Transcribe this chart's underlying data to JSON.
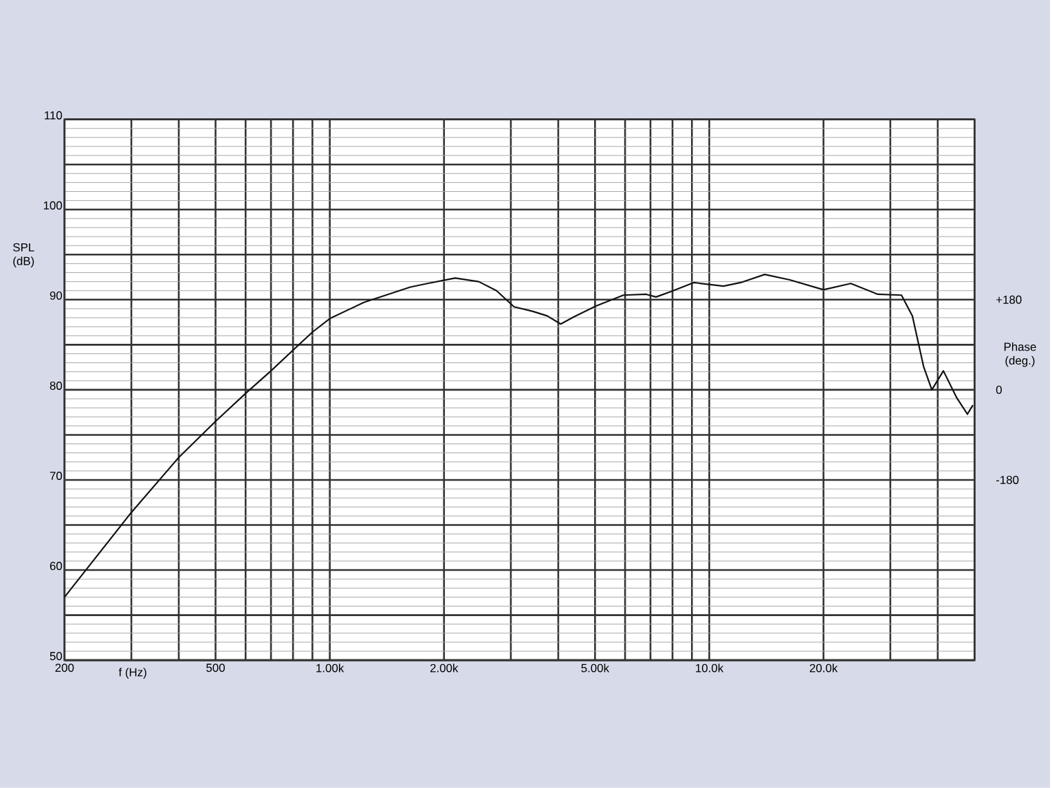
{
  "chart_data": {
    "type": "line",
    "xlabel": "f (Hz)",
    "ylabel": "SPL (dB)",
    "y2label": "Phase (deg.)",
    "log": "x",
    "grid": true,
    "marker": "none",
    "line_style": "solid",
    "xlim": [
      200,
      50000
    ],
    "ylim": [
      50,
      110
    ],
    "y2lim": [
      -540,
      540
    ],
    "xticks": [
      200,
      {
        "value": 300,
        "label": null
      },
      {
        "value": 400,
        "label": null
      },
      500,
      {
        "value": 600,
        "label": null
      },
      {
        "value": 700,
        "label": null
      },
      {
        "value": 800,
        "label": null
      },
      {
        "value": 900,
        "label": null
      },
      {
        "value": 1000,
        "label": "1.00k"
      },
      {
        "value": 2000,
        "label": "2.00k"
      },
      {
        "value": 3000,
        "label": null
      },
      {
        "value": 4000,
        "label": null
      },
      {
        "value": 5000,
        "label": "5.00k"
      },
      {
        "value": 6000,
        "label": null
      },
      {
        "value": 7000,
        "label": null
      },
      {
        "value": 8000,
        "label": null
      },
      {
        "value": 9000,
        "label": null
      },
      {
        "value": 10000,
        "label": "10.0k"
      },
      {
        "value": 20000,
        "label": "20.0k"
      },
      {
        "value": 30000,
        "label": null
      },
      {
        "value": 40000,
        "label": null
      },
      {
        "value": 50000,
        "label": null
      }
    ],
    "yticks": [
      50,
      {
        "value": 55,
        "label": null
      },
      60,
      {
        "value": 65,
        "label": null
      },
      70,
      {
        "value": 75,
        "label": null
      },
      80,
      {
        "value": 85,
        "label": null
      },
      90,
      {
        "value": 95,
        "label": null
      },
      100,
      {
        "value": 105,
        "label": null
      },
      110
    ],
    "y2ticks": [
      {
        "value": -180,
        "label": "-180"
      },
      0,
      {
        "value": 180,
        "label": "+180"
      }
    ],
    "x": [
      200,
      300,
      400,
      500,
      600,
      700,
      800,
      900,
      1000,
      1230,
      1630,
      1810,
      2140,
      2470,
      2750,
      3060,
      3430,
      3740,
      4060,
      4400,
      5030,
      5940,
      6820,
      7240,
      7930,
      9100,
      10900,
      12100,
      14000,
      16300,
      20000,
      23600,
      27800,
      32100,
      34300,
      36700,
      38600,
      41400,
      44900,
      47900,
      49500
    ],
    "series": [
      {
        "color": "#111111",
        "values": [
          57.0,
          66.4,
          72.5,
          76.5,
          79.6,
          82.1,
          84.4,
          86.4,
          87.9,
          89.7,
          91.4,
          91.8,
          92.4,
          92.0,
          91.0,
          89.2,
          88.7,
          88.2,
          87.3,
          88.1,
          89.3,
          90.5,
          90.6,
          90.3,
          90.9,
          91.9,
          91.5,
          91.9,
          92.8,
          92.2,
          91.1,
          91.8,
          90.6,
          90.5,
          88.2,
          82.6,
          80.0,
          82.1,
          79.1,
          77.3,
          78.3
        ]
      }
    ]
  }
}
